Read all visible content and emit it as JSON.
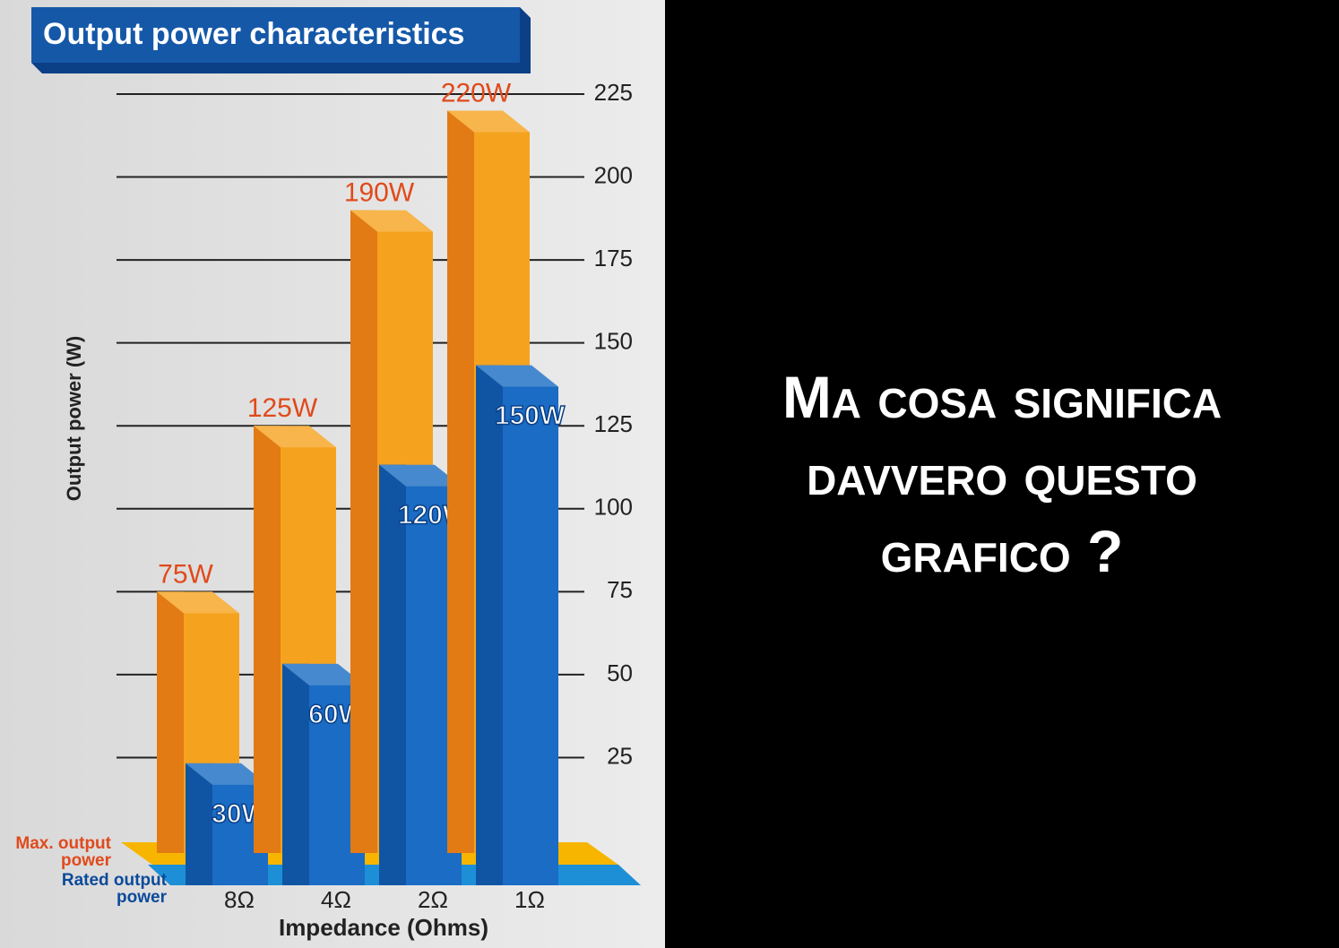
{
  "chart_data": {
    "type": "bar3d",
    "title": "Output power characteristics",
    "x_label": "Impedance (Ohms)",
    "y_label": "Output power (W)",
    "categories": [
      "8Ω",
      "4Ω",
      "2Ω",
      "1Ω"
    ],
    "series": [
      {
        "name": "Max. output power",
        "color": "#f5a31f",
        "values": [
          75,
          125,
          190,
          220
        ],
        "value_labels": [
          "75W",
          "125W",
          "190W",
          "220W"
        ]
      },
      {
        "name": "Rated output power",
        "color": "#1a6cc4",
        "values": [
          30,
          60,
          120,
          150
        ],
        "value_labels": [
          "30W",
          "60W",
          "120W",
          "150W"
        ]
      }
    ],
    "ylim": [
      0,
      225
    ],
    "yticks": [
      25,
      50,
      75,
      100,
      125,
      150,
      175,
      200,
      225
    ],
    "grid": true
  },
  "caption_lines": [
    "Ma cosa significa",
    "davvero questo",
    "grafico ?"
  ]
}
